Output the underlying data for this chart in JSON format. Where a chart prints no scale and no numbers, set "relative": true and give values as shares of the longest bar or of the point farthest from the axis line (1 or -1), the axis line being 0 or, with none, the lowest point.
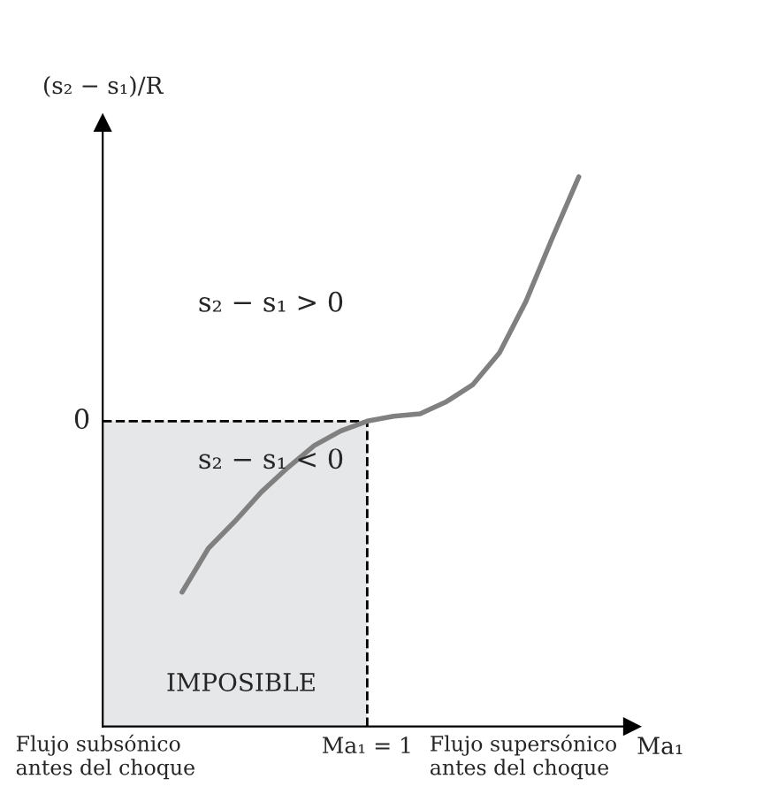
{
  "chart_data": {
    "type": "line",
    "relative": true,
    "ylabel": "(s₂ − s₁)/R",
    "categories": [
      null,
      null,
      null,
      null,
      null,
      null,
      null,
      null,
      null,
      null,
      null,
      null,
      null,
      null,
      null,
      null
    ],
    "series": [
      {
        "color": "#808080",
        "values": [
          -0.7,
          -0.52,
          -0.41,
          -0.29,
          -0.19,
          -0.1,
          -0.04,
          0,
          0.02,
          0.03,
          0.08,
          0.15,
          0.28,
          0.49,
          0.75,
          1.0
        ]
      }
    ],
    "ref_lines": [
      {
        "axis": "y",
        "value": 0,
        "label": "0",
        "line_style": "dashed",
        "color": "#000000"
      }
    ],
    "annotations": [
      "s₂ − s₁ > 0",
      "s₂ − s₁ < 0",
      "IMPOSIBLE",
      "Flujo subsónico\nantes del choque",
      "Flujo supersónico\nantes del choque",
      "Ma₁ = 1",
      "Ma₁"
    ],
    "legend": false,
    "marker": "none",
    "line_style": "solid"
  }
}
